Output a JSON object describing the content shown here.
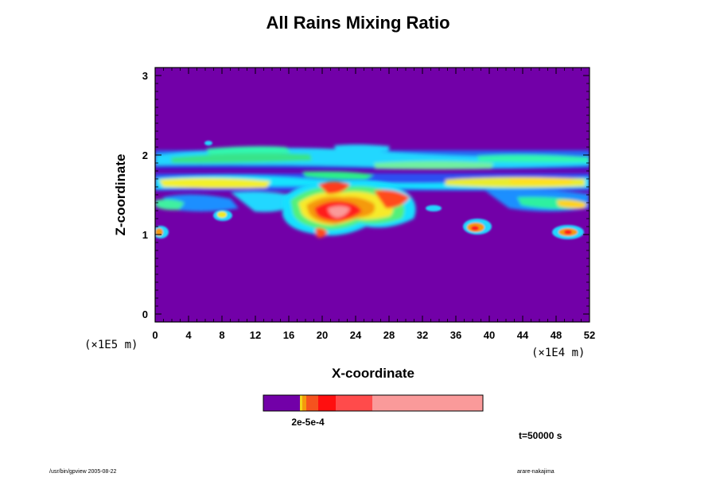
{
  "chart_data": {
    "type": "heatmap",
    "title": "All Rains Mixing Ratio",
    "xlabel": "X-coordinate",
    "ylabel": "Z-coordinate",
    "x_unit": "(×1E4 m)",
    "y_unit": "(×1E5 m)",
    "xlim": [
      0,
      52
    ],
    "ylim": [
      -0.1,
      3.1
    ],
    "x_ticks": [
      "0",
      "4",
      "8",
      "12",
      "16",
      "20",
      "24",
      "28",
      "32",
      "36",
      "40",
      "44",
      "48",
      "52"
    ],
    "y_ticks": [
      "0",
      "1",
      "2",
      "3"
    ],
    "background_color": "#7200a8",
    "colorbar": {
      "label_overlap": "2e-5e-4",
      "colors": [
        "#7200a8",
        "#f2d51a",
        "#f59a0c",
        "#f5531e",
        "#ff0f0f",
        "#ff4b4b",
        "#fa9a9a"
      ]
    },
    "annotation": "t=50000 s"
  },
  "footer": {
    "left": "/usr/bin/gpview 2005-08-22",
    "right": "arare-nakajima"
  }
}
